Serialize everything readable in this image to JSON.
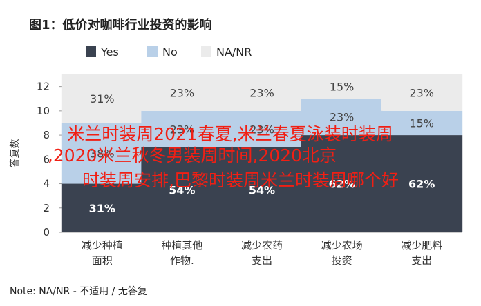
{
  "chart_data": {
    "type": "bar",
    "stacked": true,
    "title": "图1：低价对咖啡行业投资的影响",
    "ylabel": "答复数",
    "ylim": [
      0,
      13
    ],
    "yticks": [
      0,
      2,
      4,
      6,
      8,
      10,
      12
    ],
    "grid": false,
    "legend_position": "top-left",
    "categories": [
      [
        "减少种植",
        "面积"
      ],
      [
        "种植其他",
        "作物."
      ],
      [
        "减少农药",
        "支出"
      ],
      [
        "减少农场",
        "投资"
      ],
      [
        "减少肥料",
        "支出"
      ]
    ],
    "series": [
      {
        "name": "Yes",
        "color": "#3a4250",
        "values": [
          4,
          7,
          7,
          8,
          8
        ],
        "labels": [
          "31%",
          "54%",
          "54%",
          "62%",
          "62%"
        ]
      },
      {
        "name": "No",
        "color": "#b9d0e8",
        "values": [
          5,
          3,
          3,
          3,
          2
        ],
        "labels": [
          "38%",
          "23%",
          "23%",
          "23%",
          "15%"
        ]
      },
      {
        "name": "NA/NR",
        "color": "#ebebeb",
        "values": [
          4,
          3,
          3,
          2,
          3
        ],
        "labels": [
          "31%",
          "23%",
          "23%",
          "15%",
          "23%"
        ]
      }
    ],
    "note": "Note: NA/NR - 不适用 / 无答复"
  },
  "watermark": {
    "lines": [
      "米兰时装周2021春夏,米兰春夏泳装时装周",
      ",2020米兰秋冬男装周时间,2020北京",
      "时装周安排,巴黎时装周米兰时装周哪个好"
    ],
    "color": "#f11f14"
  }
}
